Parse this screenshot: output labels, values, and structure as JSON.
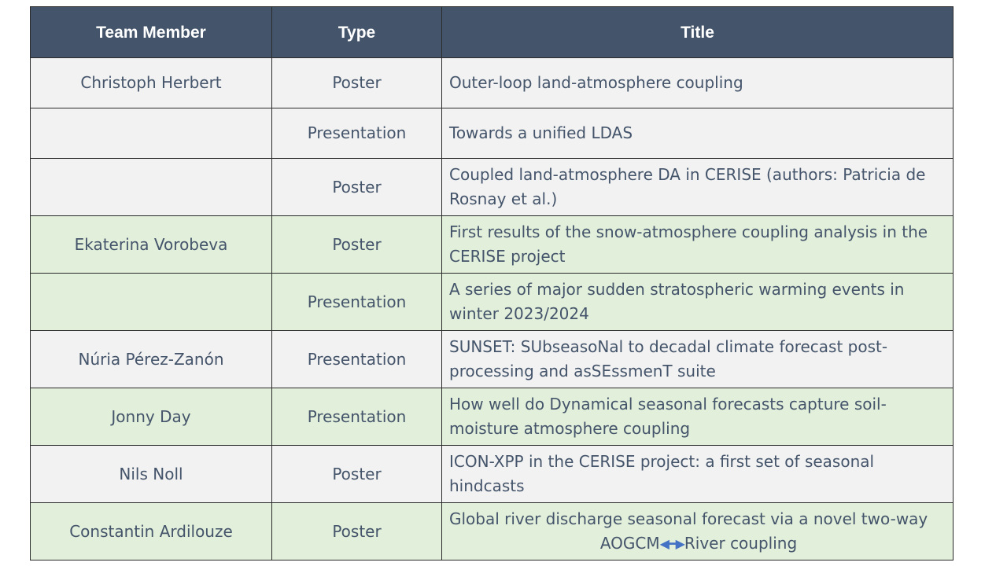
{
  "headers": {
    "member": "Team Member",
    "type": "Type",
    "title": "Title"
  },
  "rows": [
    {
      "member": "Christoph Herbert",
      "type": "Poster",
      "title": "Outer-loop land-atmosphere coupling"
    },
    {
      "member": "",
      "type": "Presentation",
      "title": "Towards a unified LDAS"
    },
    {
      "member": "",
      "type": "Poster",
      "title": "Coupled land-atmosphere DA in CERISE (authors: Patricia de Rosnay et al.)"
    },
    {
      "member": "Ekaterina Vorobeva",
      "type": "Poster",
      "title": "First results of the snow-atmosphere coupling analysis in the CERISE project"
    },
    {
      "member": "",
      "type": "Presentation",
      "title": "A series of major sudden stratospheric warming events in winter 2023/2024"
    },
    {
      "member": "Núria Pérez-Zanón",
      "type": "Presentation",
      "title": "SUNSET: SUbseasoNal to decadal climate forecast post-processing and asSEssmenT suite"
    },
    {
      "member": "Jonny Day",
      "type": "Presentation",
      "title": "How well do Dynamical seasonal forecasts capture soil-moisture atmosphere coupling"
    },
    {
      "member": "Nils Noll",
      "type": "Poster",
      "title": "ICON-XPP in the CERISE project: a first set of seasonal hindcasts"
    },
    {
      "member": "Constantin Ardilouze",
      "type": "Poster",
      "title_line1": "Global river discharge seasonal forecast via a novel two-way",
      "title_line2_a": "AOGCM",
      "title_line2_b": "River coupling"
    }
  ],
  "icons": {
    "double_arrow": "double-arrow-icon"
  },
  "colors": {
    "header_bg": "#44546a",
    "row_gray": "#f2f2f2",
    "row_green": "#e2efda",
    "text": "#44546a"
  }
}
